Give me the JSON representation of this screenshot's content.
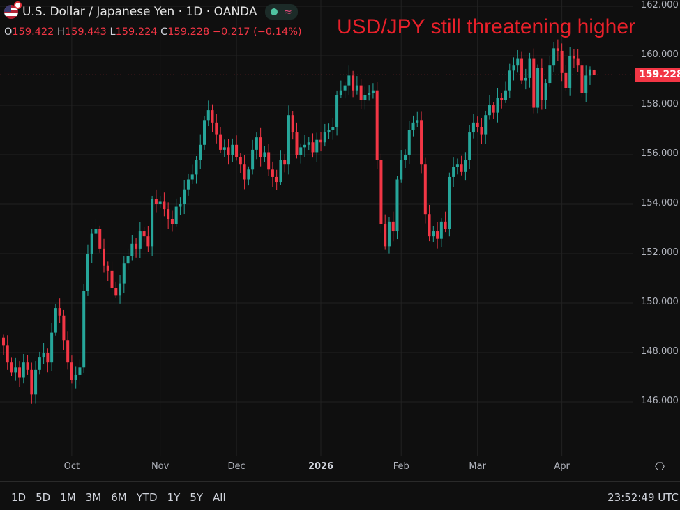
{
  "header": {
    "symbol_title": "U.S. Dollar / Japanese Yen · 1D · OANDA",
    "ohlc": {
      "o_label": "O",
      "o": "159.422",
      "h_label": "H",
      "h": "159.443",
      "l_label": "L",
      "l": "159.224",
      "c_label": "C",
      "c": "159.228",
      "change": "−0.217 (−0.14%)"
    },
    "wave_icon": "≈"
  },
  "headline": "USD/JPY still threatening higher",
  "current_price_label": "159.228",
  "colors": {
    "up": "#26a69a",
    "down": "#f23645",
    "grid": "#222222",
    "background": "#0f0f0f",
    "headline": "#e8202a"
  },
  "chart_data": {
    "type": "candlestick",
    "title": "U.S. Dollar / Japanese Yen · 1D · OANDA",
    "ylim": [
      144.5,
      162.2
    ],
    "y_ticks": [
      "162.000",
      "160.000",
      "158.000",
      "156.000",
      "154.000",
      "152.000",
      "150.000",
      "148.000",
      "146.000"
    ],
    "y_tick_values": [
      162,
      160,
      158,
      156,
      154,
      152,
      150,
      148,
      146
    ],
    "x_ticks": [
      "Oct",
      "Nov",
      "Dec",
      "2026",
      "Feb",
      "Mar",
      "Apr"
    ],
    "x_tick_index": [
      17,
      39,
      58,
      79,
      99,
      118,
      139
    ],
    "first_open": 148.6,
    "closes": [
      148.3,
      147.6,
      147.2,
      147.4,
      147.0,
      147.6,
      147.3,
      146.3,
      147.3,
      147.8,
      148.0,
      147.6,
      148.8,
      149.8,
      149.5,
      148.5,
      147.6,
      146.9,
      147.1,
      147.4,
      150.5,
      152.0,
      152.8,
      153.0,
      152.2,
      151.5,
      151.3,
      150.6,
      150.3,
      150.8,
      151.6,
      151.9,
      152.4,
      152.2,
      152.9,
      152.7,
      152.3,
      154.2,
      154.0,
      154.1,
      153.8,
      153.4,
      153.2,
      153.9,
      154.0,
      154.6,
      155.0,
      155.2,
      155.8,
      156.4,
      157.4,
      157.8,
      157.3,
      156.8,
      156.2,
      156.3,
      156.0,
      156.4,
      155.9,
      155.6,
      155.0,
      155.4,
      156.2,
      156.7,
      155.9,
      156.1,
      155.4,
      155.1,
      154.9,
      155.8,
      155.6,
      157.6,
      156.9,
      156.0,
      156.3,
      156.4,
      156.5,
      156.1,
      156.6,
      156.5,
      156.9,
      157.0,
      157.1,
      158.4,
      158.6,
      158.8,
      159.2,
      158.6,
      158.8,
      158.2,
      158.4,
      158.5,
      158.6,
      155.8,
      153.2,
      152.3,
      153.3,
      152.9,
      155.0,
      155.8,
      156.0,
      157.0,
      157.3,
      157.4,
      155.6,
      153.6,
      152.7,
      152.9,
      152.6,
      153.3,
      153.0,
      155.1,
      155.5,
      155.6,
      155.3,
      155.8,
      156.9,
      157.3,
      157.1,
      156.8,
      157.6,
      158.0,
      157.7,
      158.3,
      158.2,
      158.6,
      159.4,
      159.6,
      159.9,
      159.0,
      159.1,
      159.9,
      157.9,
      159.5,
      158.2,
      158.9,
      159.6,
      160.3,
      160.2,
      159.3,
      158.7,
      160.0,
      159.9,
      159.6,
      158.5,
      159.2,
      159.445,
      159.228
    ],
    "last_candle": {
      "open": 159.422,
      "high": 159.443,
      "low": 159.224,
      "close": 159.228
    },
    "current_price": 159.228,
    "grid": true
  },
  "footer": {
    "ranges": [
      "1D",
      "5D",
      "1M",
      "3M",
      "6M",
      "YTD",
      "1Y",
      "5Y",
      "All"
    ],
    "clock": "23:52:49 UTC",
    "settings_icon": "⎔"
  }
}
